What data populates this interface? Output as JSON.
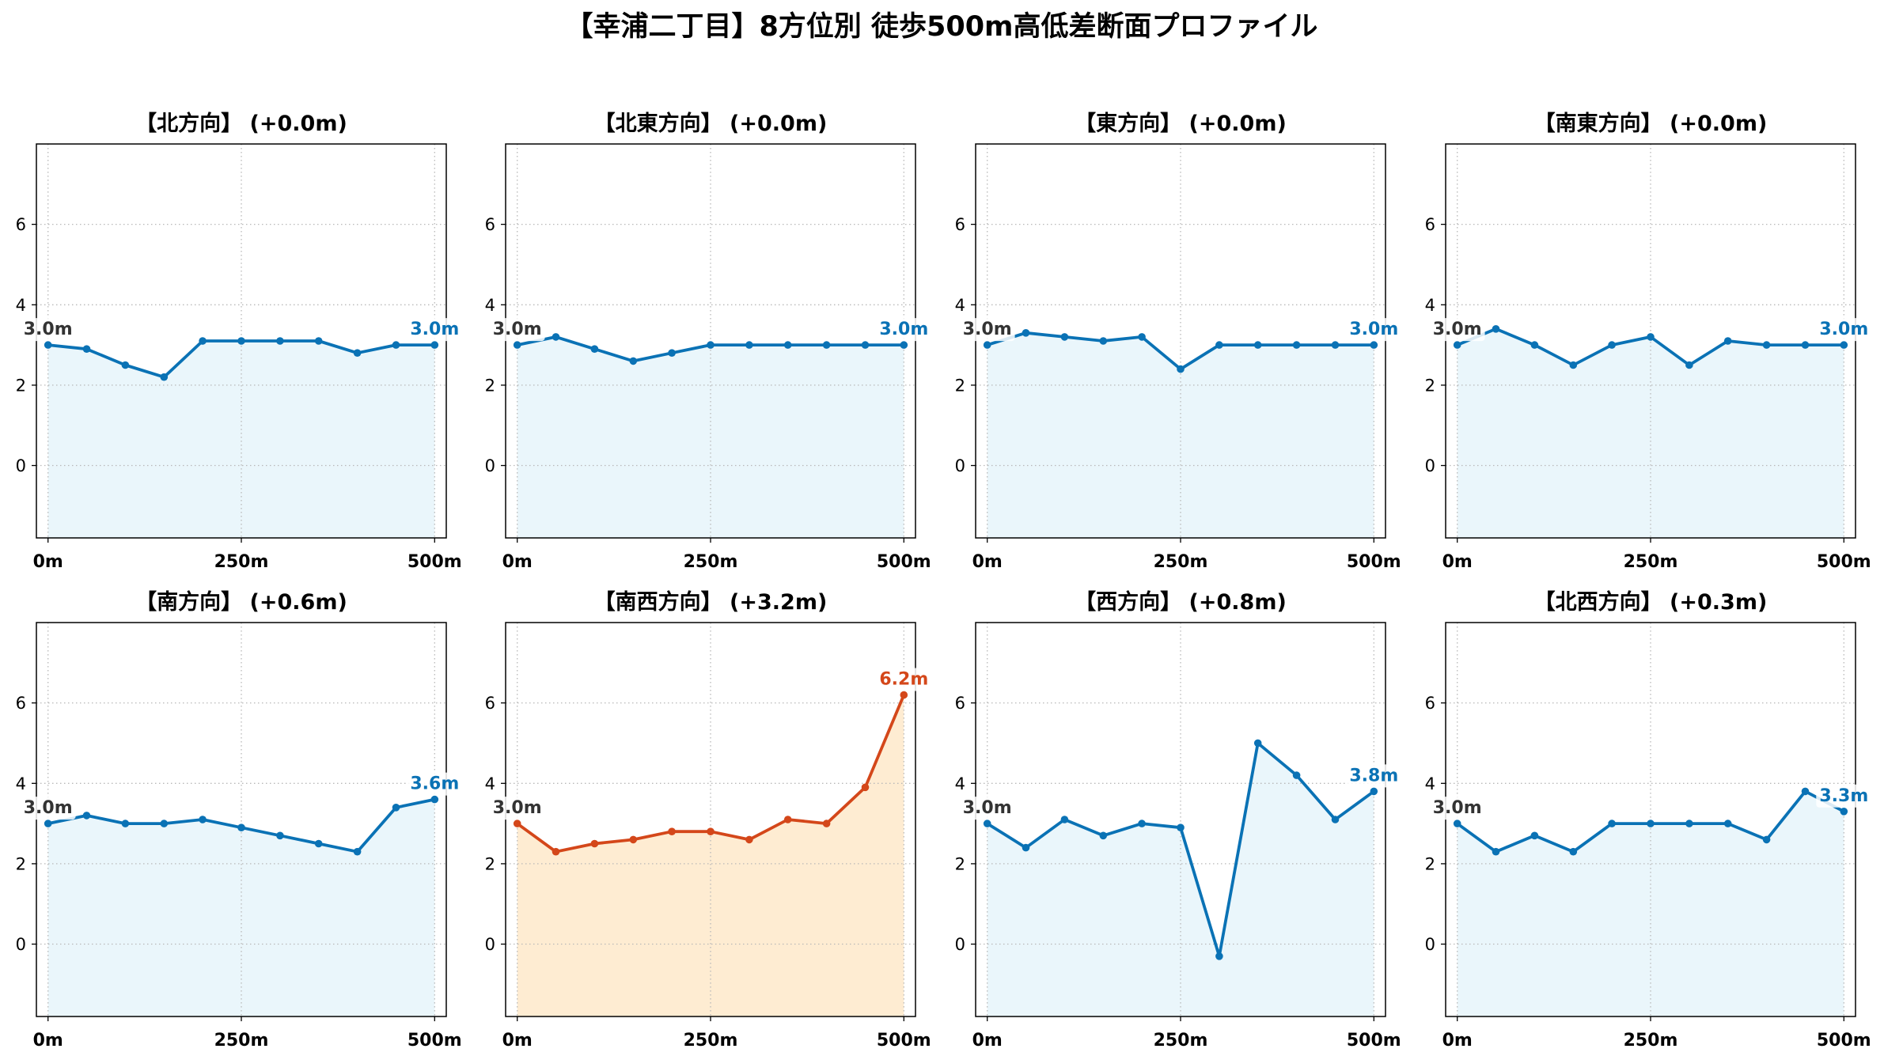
{
  "figure": {
    "title": "【幸浦二丁目】8方位別 徒歩500m高低差断面プロファイル"
  },
  "colors": {
    "grid": "#b8b8b8",
    "axes": "#000000",
    "start_label": "#333333"
  },
  "chart_data": [
    {
      "type": "line",
      "title": "【北方向】 (+0.0m)",
      "x": [
        0,
        50,
        100,
        150,
        200,
        250,
        300,
        350,
        400,
        450,
        500
      ],
      "y": [
        3.0,
        2.9,
        2.5,
        2.2,
        3.1,
        3.1,
        3.1,
        3.1,
        2.8,
        3.0,
        3.0
      ],
      "start_label": "3.0m",
      "end_label": "3.0m",
      "color": "#0a72b5",
      "fill": "#eaf6fb",
      "xticks": [
        0,
        250,
        500
      ],
      "xticklabels": [
        "0m",
        "250m",
        "500m"
      ],
      "yticks": [
        0,
        2,
        4,
        6
      ],
      "xlim": [
        -15,
        515
      ],
      "ylim": [
        -1.8,
        8.0
      ],
      "grid": true
    },
    {
      "type": "line",
      "title": "【北東方向】 (+0.0m)",
      "x": [
        0,
        50,
        100,
        150,
        200,
        250,
        300,
        350,
        400,
        450,
        500
      ],
      "y": [
        3.0,
        3.2,
        2.9,
        2.6,
        2.8,
        3.0,
        3.0,
        3.0,
        3.0,
        3.0,
        3.0
      ],
      "start_label": "3.0m",
      "end_label": "3.0m",
      "color": "#0a72b5",
      "fill": "#eaf6fb",
      "xticks": [
        0,
        250,
        500
      ],
      "xticklabels": [
        "0m",
        "250m",
        "500m"
      ],
      "yticks": [
        0,
        2,
        4,
        6
      ],
      "xlim": [
        -15,
        515
      ],
      "ylim": [
        -1.8,
        8.0
      ],
      "grid": true
    },
    {
      "type": "line",
      "title": "【東方向】 (+0.0m)",
      "x": [
        0,
        50,
        100,
        150,
        200,
        250,
        300,
        350,
        400,
        450,
        500
      ],
      "y": [
        3.0,
        3.3,
        3.2,
        3.1,
        3.2,
        2.4,
        3.0,
        3.0,
        3.0,
        3.0,
        3.0
      ],
      "start_label": "3.0m",
      "end_label": "3.0m",
      "color": "#0a72b5",
      "fill": "#eaf6fb",
      "xticks": [
        0,
        250,
        500
      ],
      "xticklabels": [
        "0m",
        "250m",
        "500m"
      ],
      "yticks": [
        0,
        2,
        4,
        6
      ],
      "xlim": [
        -15,
        515
      ],
      "ylim": [
        -1.8,
        8.0
      ],
      "grid": true
    },
    {
      "type": "line",
      "title": "【南東方向】 (+0.0m)",
      "x": [
        0,
        50,
        100,
        150,
        200,
        250,
        300,
        350,
        400,
        450,
        500
      ],
      "y": [
        3.0,
        3.4,
        3.0,
        2.5,
        3.0,
        3.2,
        2.5,
        3.1,
        3.0,
        3.0,
        3.0
      ],
      "start_label": "3.0m",
      "end_label": "3.0m",
      "color": "#0a72b5",
      "fill": "#eaf6fb",
      "xticks": [
        0,
        250,
        500
      ],
      "xticklabels": [
        "0m",
        "250m",
        "500m"
      ],
      "yticks": [
        0,
        2,
        4,
        6
      ],
      "xlim": [
        -15,
        515
      ],
      "ylim": [
        -1.8,
        8.0
      ],
      "grid": true
    },
    {
      "type": "line",
      "title": "【南方向】 (+0.6m)",
      "x": [
        0,
        50,
        100,
        150,
        200,
        250,
        300,
        350,
        400,
        450,
        500
      ],
      "y": [
        3.0,
        3.2,
        3.0,
        3.0,
        3.1,
        2.9,
        2.7,
        2.5,
        2.3,
        3.4,
        3.6
      ],
      "start_label": "3.0m",
      "end_label": "3.6m",
      "color": "#0a72b5",
      "fill": "#eaf6fb",
      "xticks": [
        0,
        250,
        500
      ],
      "xticklabels": [
        "0m",
        "250m",
        "500m"
      ],
      "yticks": [
        0,
        2,
        4,
        6
      ],
      "xlim": [
        -15,
        515
      ],
      "ylim": [
        -1.8,
        8.0
      ],
      "grid": true
    },
    {
      "type": "line",
      "title": "【南西方向】 (+3.2m)",
      "x": [
        0,
        50,
        100,
        150,
        200,
        250,
        300,
        350,
        400,
        450,
        500
      ],
      "y": [
        3.0,
        2.3,
        2.5,
        2.6,
        2.8,
        2.8,
        2.6,
        3.1,
        3.0,
        3.9,
        6.2
      ],
      "start_label": "3.0m",
      "end_label": "6.2m",
      "color": "#d4471a",
      "fill": "#feecd2",
      "xticks": [
        0,
        250,
        500
      ],
      "xticklabels": [
        "0m",
        "250m",
        "500m"
      ],
      "yticks": [
        0,
        2,
        4,
        6
      ],
      "xlim": [
        -15,
        515
      ],
      "ylim": [
        -1.8,
        8.0
      ],
      "grid": true
    },
    {
      "type": "line",
      "title": "【西方向】 (+0.8m)",
      "x": [
        0,
        50,
        100,
        150,
        200,
        250,
        300,
        350,
        400,
        450,
        500
      ],
      "y": [
        3.0,
        2.4,
        3.1,
        2.7,
        3.0,
        2.9,
        -0.3,
        5.0,
        4.2,
        3.1,
        3.8
      ],
      "start_label": "3.0m",
      "end_label": "3.8m",
      "color": "#0a72b5",
      "fill": "#eaf6fb",
      "xticks": [
        0,
        250,
        500
      ],
      "xticklabels": [
        "0m",
        "250m",
        "500m"
      ],
      "yticks": [
        0,
        2,
        4,
        6
      ],
      "xlim": [
        -15,
        515
      ],
      "ylim": [
        -1.8,
        8.0
      ],
      "grid": true
    },
    {
      "type": "line",
      "title": "【北西方向】 (+0.3m)",
      "x": [
        0,
        50,
        100,
        150,
        200,
        250,
        300,
        350,
        400,
        450,
        500
      ],
      "y": [
        3.0,
        2.3,
        2.7,
        2.3,
        3.0,
        3.0,
        3.0,
        3.0,
        2.6,
        3.8,
        3.3
      ],
      "start_label": "3.0m",
      "end_label": "3.3m",
      "color": "#0a72b5",
      "fill": "#eaf6fb",
      "xticks": [
        0,
        250,
        500
      ],
      "xticklabels": [
        "0m",
        "250m",
        "500m"
      ],
      "yticks": [
        0,
        2,
        4,
        6
      ],
      "xlim": [
        -15,
        515
      ],
      "ylim": [
        -1.8,
        8.0
      ],
      "grid": true
    }
  ]
}
